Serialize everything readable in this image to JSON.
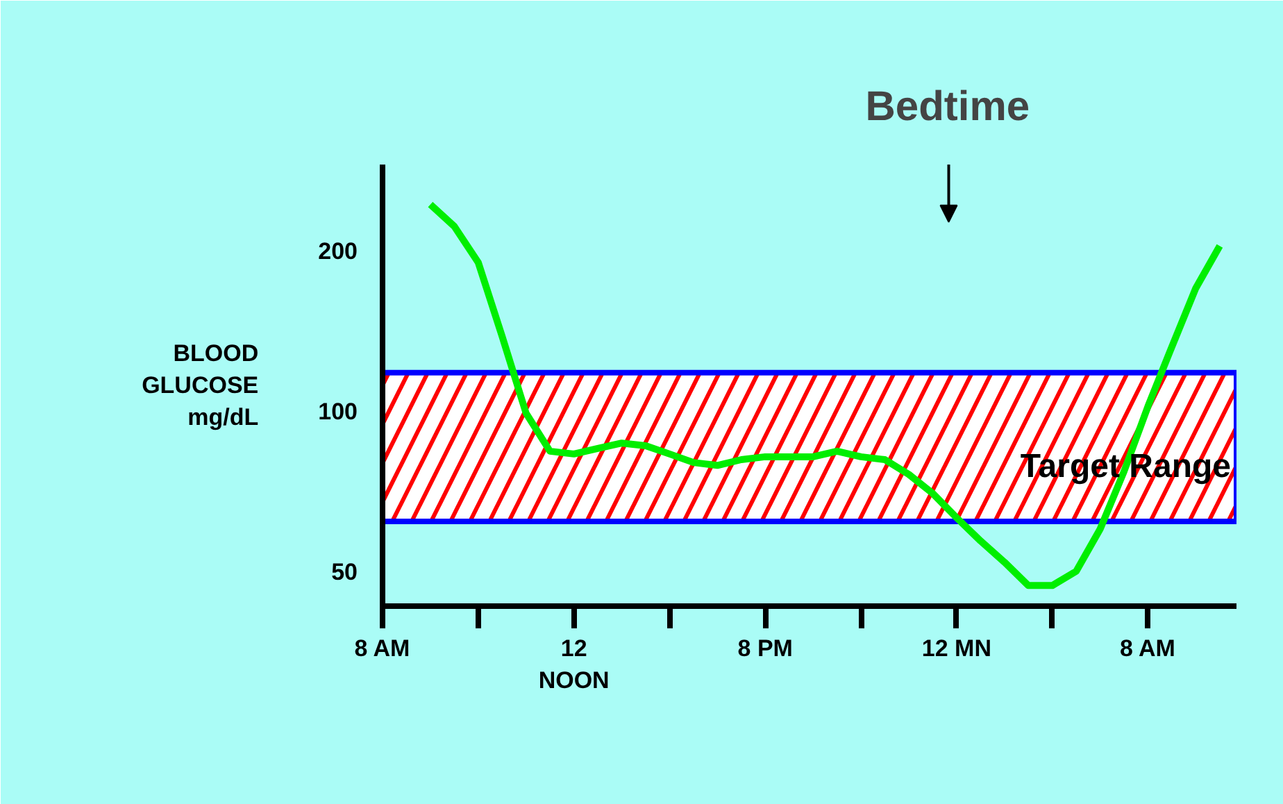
{
  "chart_data": {
    "type": "line",
    "ylabel": "BLOOD\nGLUCOSE\nmg/dL",
    "categories": [
      "8 AM",
      null,
      null,
      null,
      null,
      null,
      null,
      null,
      "12\nNOON",
      null,
      null,
      null,
      null,
      null,
      null,
      null,
      "8 PM",
      null,
      null,
      null,
      null,
      null,
      null,
      null,
      "12 MN",
      null,
      null,
      null,
      null,
      null,
      null,
      null,
      "8 AM",
      null,
      null,
      null
    ],
    "series": [
      {
        "color": "#00ee00",
        "values": [
          null,
          null,
          244,
          222,
          190,
          138,
          99,
          84,
          83,
          85,
          87,
          86,
          83,
          80,
          79,
          81,
          82,
          82,
          82,
          84,
          82,
          81,
          76,
          70,
          63,
          57,
          52,
          47,
          47,
          50,
          60,
          77,
          102,
          132,
          170,
          204
        ]
      }
    ],
    "log": "y",
    "ylim": [
      43,
      290
    ],
    "yticks": [
      50,
      100,
      200
    ],
    "bands": [
      {
        "axis": "y",
        "from": 62,
        "to": 118,
        "label": "Target Range",
        "color": "#ffffff"
      }
    ],
    "annotations": [
      "Bedtime"
    ],
    "grid": false
  }
}
